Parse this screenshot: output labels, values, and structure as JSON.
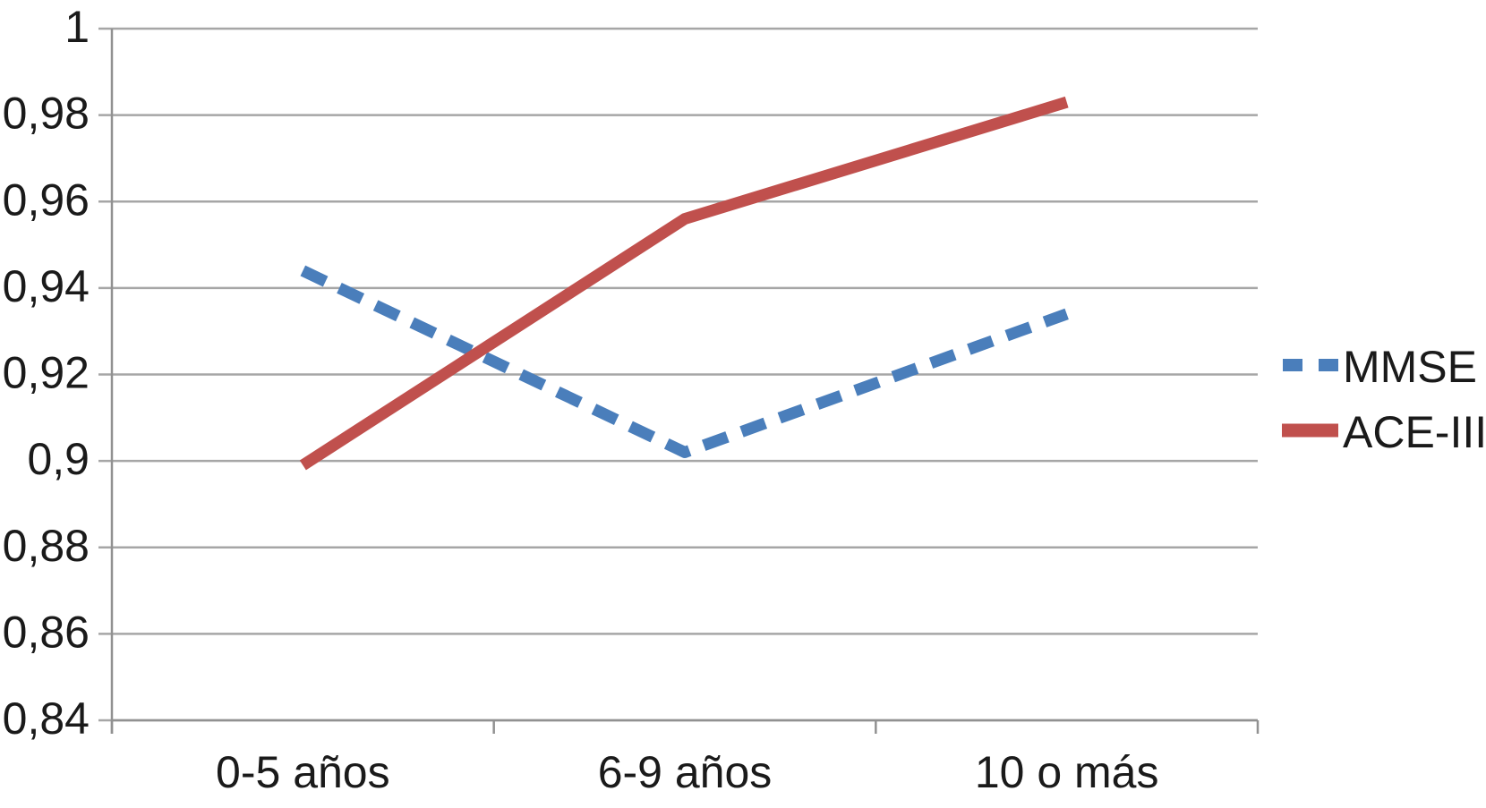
{
  "chart_data": {
    "type": "line",
    "title": "",
    "xlabel": "",
    "ylabel": "",
    "categories": [
      "0-5 años",
      "6-9 años",
      "10 o más"
    ],
    "series": [
      {
        "name": "MMSE",
        "values": [
          0.944,
          0.902,
          0.934
        ],
        "color": "#4a7ebb",
        "line_style": "dashed"
      },
      {
        "name": "ACE-III",
        "values": [
          0.899,
          0.956,
          0.983
        ],
        "color": "#c0504d",
        "line_style": "solid"
      }
    ],
    "ylim": [
      0.84,
      1.0
    ],
    "y_tick_step": 0.02,
    "decimal_separator": ",",
    "y_ticks": [
      {
        "value": 1.0,
        "label": "1"
      },
      {
        "value": 0.98,
        "label": "0,98"
      },
      {
        "value": 0.96,
        "label": "0,96"
      },
      {
        "value": 0.94,
        "label": "0,94"
      },
      {
        "value": 0.92,
        "label": "0,92"
      },
      {
        "value": 0.9,
        "label": "0,9"
      },
      {
        "value": 0.88,
        "label": "0,88"
      },
      {
        "value": 0.86,
        "label": "0,86"
      },
      {
        "value": 0.84,
        "label": "0,84"
      }
    ],
    "grid": true,
    "legend_position": "right"
  },
  "colors": {
    "mmse_line": "#4a7ebb",
    "ace_line": "#c0504d",
    "gridline": "#a6a6a6",
    "axis": "#919191",
    "text": "#1a1a1a",
    "background": "#ffffff"
  }
}
